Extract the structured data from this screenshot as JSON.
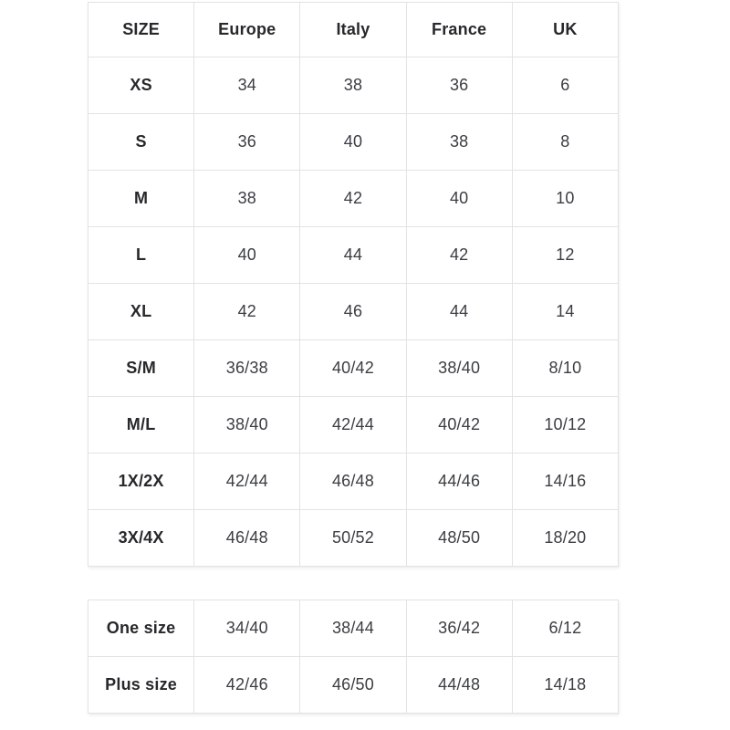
{
  "colors": {
    "background": "#ffffff",
    "border": "#e3e3e6",
    "header_text": "#28282c",
    "cell_text": "#3a3d42"
  },
  "size_table": {
    "columns": [
      "SIZE",
      "Europe",
      "Italy",
      "France",
      "UK"
    ],
    "rows": [
      {
        "label": "XS",
        "values": [
          "34",
          "38",
          "36",
          "6"
        ]
      },
      {
        "label": "S",
        "values": [
          "36",
          "40",
          "38",
          "8"
        ]
      },
      {
        "label": "M",
        "values": [
          "38",
          "42",
          "40",
          "10"
        ]
      },
      {
        "label": "L",
        "values": [
          "40",
          "44",
          "42",
          "12"
        ]
      },
      {
        "label": "XL",
        "values": [
          "42",
          "46",
          "44",
          "14"
        ]
      },
      {
        "label": "S/M",
        "values": [
          "36/38",
          "40/42",
          "38/40",
          "8/10"
        ]
      },
      {
        "label": "M/L",
        "values": [
          "38/40",
          "42/44",
          "40/42",
          "10/12"
        ]
      },
      {
        "label": "1X/2X",
        "values": [
          "42/44",
          "46/48",
          "44/46",
          "14/16"
        ]
      },
      {
        "label": "3X/4X",
        "values": [
          "46/48",
          "50/52",
          "48/50",
          "18/20"
        ]
      }
    ]
  },
  "special_table": {
    "rows": [
      {
        "label": "One size",
        "values": [
          "34/40",
          "38/44",
          "36/42",
          "6/12"
        ]
      },
      {
        "label": "Plus size",
        "values": [
          "42/46",
          "46/50",
          "44/48",
          "14/18"
        ]
      }
    ]
  },
  "chart_data": {
    "type": "table",
    "title": "",
    "columns": [
      "SIZE",
      "Europe",
      "Italy",
      "France",
      "UK"
    ],
    "rows": [
      [
        "XS",
        "34",
        "38",
        "36",
        "6"
      ],
      [
        "S",
        "36",
        "40",
        "38",
        "8"
      ],
      [
        "M",
        "38",
        "42",
        "40",
        "10"
      ],
      [
        "L",
        "40",
        "44",
        "42",
        "12"
      ],
      [
        "XL",
        "42",
        "46",
        "44",
        "14"
      ],
      [
        "S/M",
        "36/38",
        "40/42",
        "38/40",
        "8/10"
      ],
      [
        "M/L",
        "38/40",
        "42/44",
        "40/42",
        "10/12"
      ],
      [
        "1X/2X",
        "42/44",
        "46/48",
        "44/46",
        "14/16"
      ],
      [
        "3X/4X",
        "46/48",
        "50/52",
        "48/50",
        "18/20"
      ],
      [
        "One size",
        "34/40",
        "38/44",
        "36/42",
        "6/12"
      ],
      [
        "Plus size",
        "42/46",
        "46/50",
        "44/48",
        "14/18"
      ]
    ]
  }
}
